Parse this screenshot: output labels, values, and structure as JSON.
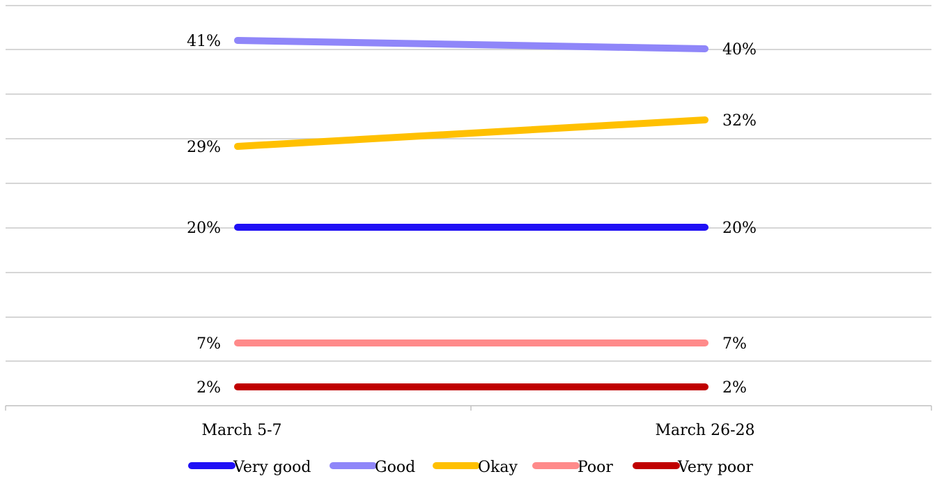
{
  "chart_data": {
    "type": "line",
    "title": "",
    "xlabel": "",
    "ylabel": "",
    "categories": [
      "March 5-7",
      "March 26-28"
    ],
    "series": [
      {
        "name": "Very good",
        "values": [
          20,
          20
        ],
        "labels": [
          "20%",
          "20%"
        ],
        "color": "#1f10f5"
      },
      {
        "name": "Good",
        "values": [
          41,
          40
        ],
        "labels": [
          "41%",
          "40%"
        ],
        "color": "#8f86f9"
      },
      {
        "name": "Okay",
        "values": [
          29,
          32
        ],
        "labels": [
          "29%",
          "32%"
        ],
        "color": "#ffc000"
      },
      {
        "name": "Poor",
        "values": [
          7,
          7
        ],
        "labels": [
          "7%",
          "7%"
        ],
        "color": "#ff8a8a"
      },
      {
        "name": "Very poor",
        "values": [
          2,
          2
        ],
        "labels": [
          "2%",
          "2%"
        ],
        "color": "#c00000"
      }
    ],
    "grid": true,
    "legend_position": "bottom",
    "show_data_labels": true,
    "show_y_axis_labels": false
  }
}
